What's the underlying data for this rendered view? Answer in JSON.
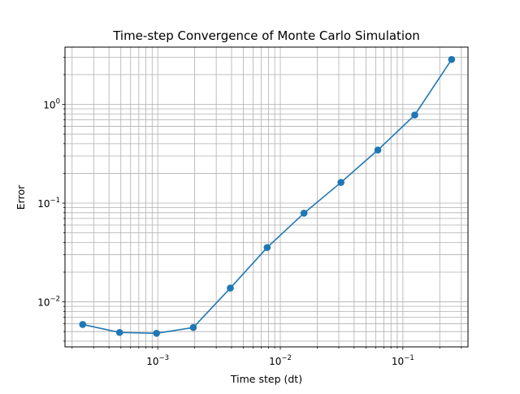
{
  "chart_data": {
    "type": "line",
    "title": "Time-step Convergence of Monte Carlo Simulation",
    "xlabel": "Time step (dt)",
    "ylabel": "Error",
    "xscale": "log",
    "yscale": "log",
    "xlim": [
      0.000175,
      0.34
    ],
    "ylim": [
      0.0035,
      3.8
    ],
    "grid": "major and minor",
    "x_ticks": [
      {
        "value": 0.001,
        "base": "10",
        "exp": "−3"
      },
      {
        "value": 0.01,
        "base": "10",
        "exp": "−2"
      },
      {
        "value": 0.1,
        "base": "10",
        "exp": "−1"
      }
    ],
    "y_ticks": [
      {
        "value": 0.01,
        "base": "10",
        "exp": "−2"
      },
      {
        "value": 0.1,
        "base": "10",
        "exp": "−1"
      },
      {
        "value": 1,
        "base": "10",
        "exp": "0"
      }
    ],
    "series": [
      {
        "color": "#1f77b4",
        "marker": "circle",
        "x": [
          0.000244,
          0.000488,
          0.000977,
          0.00195,
          0.00391,
          0.00781,
          0.0156,
          0.03125,
          0.0625,
          0.125,
          0.25
        ],
        "y": [
          0.0059,
          0.0049,
          0.0048,
          0.0055,
          0.0138,
          0.0355,
          0.079,
          0.162,
          0.345,
          0.78,
          2.85
        ]
      }
    ]
  }
}
